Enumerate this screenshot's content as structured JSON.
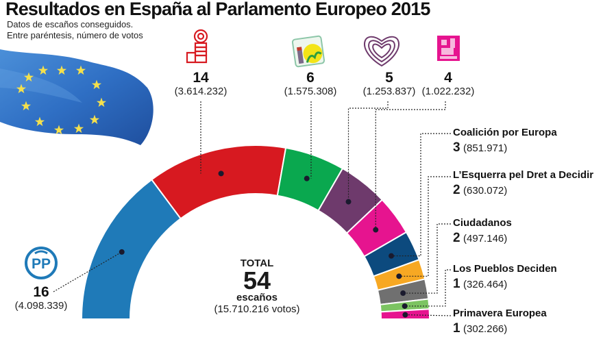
{
  "title": "Resultados en España al Parlamento Europeo 2015",
  "subtitle_lines": [
    "Datos de escaños conseguidos.",
    "Entre paréntesis, número de votos"
  ],
  "total": {
    "label": "TOTAL",
    "seats": "54",
    "seats_label": "escaños",
    "votes": "(15.710.216 votos)"
  },
  "chart_data": {
    "type": "pie",
    "subtype": "parliament-semicircle",
    "title": "Resultados en España al Parlamento Europeo 2015",
    "total_seats": 54,
    "total_votes": 15710216,
    "order": "left-to-right",
    "series": [
      {
        "party": "PP",
        "logo": "pp-logo-icon",
        "seats": 16,
        "votes": 4098339,
        "votes_label": "(4.098.339)",
        "color": "#1f7ab8"
      },
      {
        "party": "PSOE",
        "logo": "psoe-rose-fist-icon",
        "seats": 14,
        "votes": 3614232,
        "votes_label": "(3.614.232)",
        "color": "#d71920"
      },
      {
        "party": "Izquierda Plural",
        "logo": "iu-logo-icon",
        "seats": 6,
        "votes": 1575308,
        "votes_label": "(1.575.308)",
        "color": "#0aa84f"
      },
      {
        "party": "Podemos",
        "logo": "podemos-heart-icon",
        "seats": 5,
        "votes": 1253837,
        "votes_label": "(1.253.837)",
        "color": "#6e3a6c"
      },
      {
        "party": "UPyD",
        "logo": "upyd-logo-icon",
        "seats": 4,
        "votes": 1022232,
        "votes_label": "(1.022.232)",
        "color": "#e6148f"
      },
      {
        "party": "Coalición por Europa",
        "seats": 3,
        "votes": 851971,
        "votes_label": "(851.971)",
        "color": "#0c4a7e"
      },
      {
        "party": "L’Esquerra pel Dret a Decidir",
        "seats": 2,
        "votes": 630072,
        "votes_label": "(630.072)",
        "color": "#f7a823"
      },
      {
        "party": "Ciudadanos",
        "seats": 2,
        "votes": 497146,
        "votes_label": "(497.146)",
        "color": "#707070"
      },
      {
        "party": "Los Pueblos Deciden",
        "seats": 1,
        "votes": 326464,
        "votes_label": "(326.464)",
        "color": "#7cc462"
      },
      {
        "party": "Primavera Europea",
        "seats": 1,
        "votes": 302266,
        "votes_label": "(302.266)",
        "color": "#e6148f"
      }
    ]
  }
}
